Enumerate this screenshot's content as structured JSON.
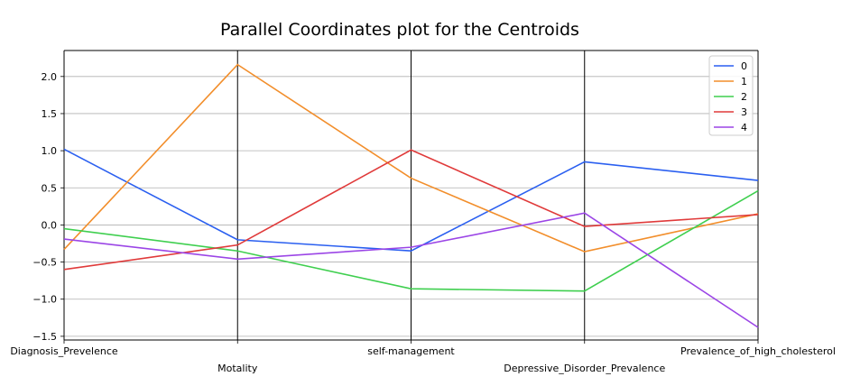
{
  "chart_data": {
    "type": "line",
    "title": "Parallel Coordinates plot for the Centroids",
    "categories": [
      "Diagnosis_Prevelence",
      "Motality",
      "self-management",
      "Depressive_Disorder_Prevalence",
      "Prevalence_of_high_cholesterol"
    ],
    "ylim": [
      -1.55,
      2.35
    ],
    "yticks": [
      "2.0",
      "1.5",
      "1.0",
      "0.5",
      "0.0",
      "−0.5",
      "−1.0",
      "−1.5"
    ],
    "ytick_values": [
      2.0,
      1.5,
      1.0,
      0.5,
      0.0,
      -0.5,
      -1.0,
      -1.5
    ],
    "grid": true,
    "legend_position": "top-right",
    "series": [
      {
        "name": "0",
        "color": "#2a5ff0",
        "values": [
          1.02,
          -0.2,
          -0.35,
          0.85,
          0.6
        ]
      },
      {
        "name": "1",
        "color": "#f28e2b",
        "values": [
          -0.33,
          2.16,
          0.63,
          -0.36,
          0.15
        ]
      },
      {
        "name": "2",
        "color": "#3fcf4f",
        "values": [
          -0.05,
          -0.35,
          -0.86,
          -0.89,
          0.46
        ]
      },
      {
        "name": "3",
        "color": "#e03a3a",
        "values": [
          -0.6,
          -0.27,
          1.01,
          -0.02,
          0.14
        ]
      },
      {
        "name": "4",
        "color": "#9b45e6",
        "values": [
          -0.19,
          -0.46,
          -0.3,
          0.16,
          -1.38
        ]
      }
    ]
  }
}
